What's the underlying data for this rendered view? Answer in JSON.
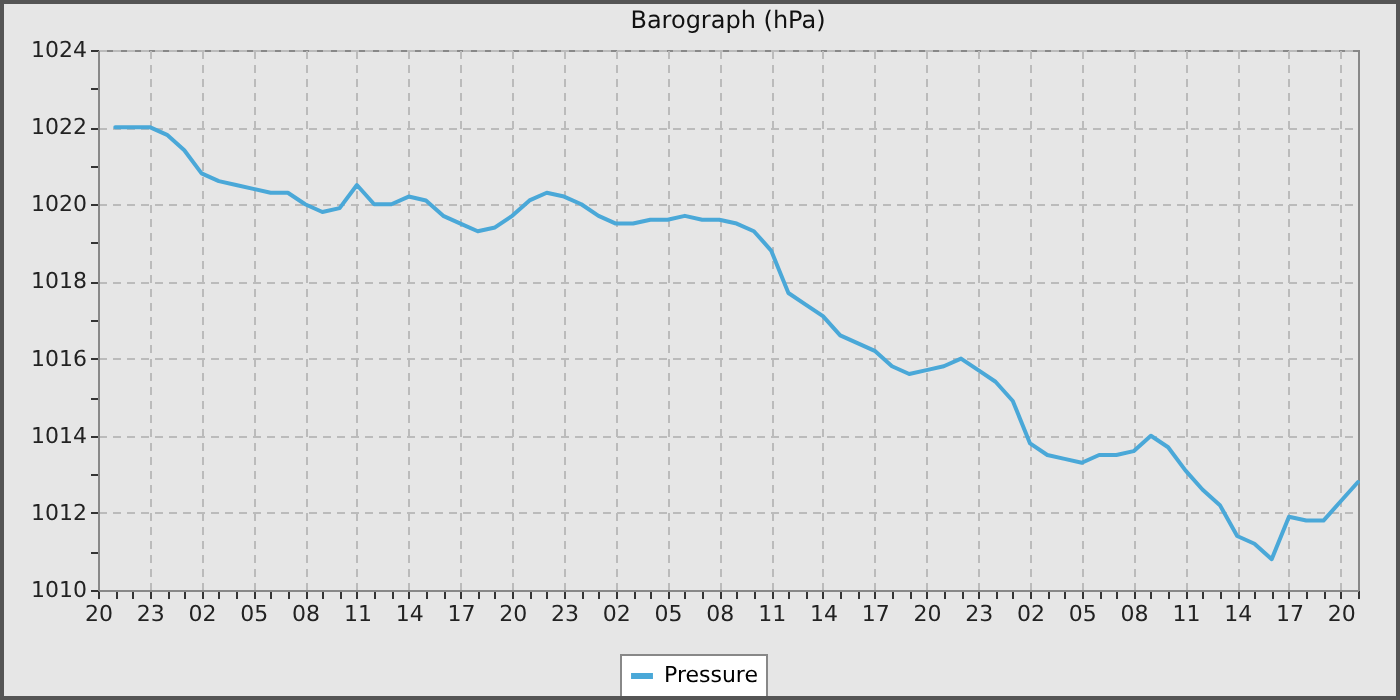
{
  "chart_data": {
    "type": "line",
    "title": "Barograph (hPa)",
    "legend": "bottom",
    "grid": true,
    "marker": "none",
    "line_style": "solid",
    "ylim": [
      1010,
      1024
    ],
    "categories": [
      "20",
      null,
      null,
      "23",
      null,
      null,
      "02",
      null,
      null,
      "05",
      null,
      null,
      "08",
      null,
      null,
      "11",
      null,
      null,
      "14",
      null,
      null,
      "17",
      null,
      null,
      "20",
      null,
      null,
      "23",
      null,
      null,
      "02",
      null,
      null,
      "05",
      null,
      null,
      "08",
      null,
      null,
      "11",
      null,
      null,
      "14",
      null,
      null,
      "17",
      null,
      null,
      "20",
      null,
      null,
      "23",
      null,
      null,
      "02",
      null,
      null,
      "05",
      null,
      null,
      "08",
      null,
      null,
      "11",
      null,
      null,
      "14",
      null,
      null,
      "17",
      null,
      null,
      "20",
      null
    ],
    "yticks": [
      1010,
      {
        "value": 1011,
        "label": null
      },
      1012,
      {
        "value": 1013,
        "label": null
      },
      1014,
      {
        "value": 1015,
        "label": null
      },
      1016,
      {
        "value": 1017,
        "label": null
      },
      1018,
      {
        "value": 1019,
        "label": null
      },
      1020,
      {
        "value": 1021,
        "label": null
      },
      1022,
      {
        "value": 1023,
        "label": null
      },
      1024
    ],
    "series": [
      {
        "name": "Pressure",
        "color": "#4aa8d8",
        "values": [
          null,
          1022.0,
          1022.0,
          1022.0,
          1021.8,
          1021.4,
          1020.8,
          1020.6,
          1020.5,
          1020.4,
          1020.3,
          1020.3,
          1020.0,
          1019.8,
          1019.9,
          1020.5,
          1020.0,
          1020.0,
          1020.2,
          1020.1,
          1019.7,
          1019.5,
          1019.3,
          1019.4,
          1019.7,
          1020.1,
          1020.3,
          1020.2,
          1020.0,
          1019.7,
          1019.5,
          1019.5,
          1019.6,
          1019.6,
          1019.7,
          1019.6,
          1019.6,
          1019.5,
          1019.3,
          1018.8,
          1017.7,
          1017.4,
          1017.1,
          1016.6,
          1016.4,
          1016.2,
          1015.8,
          1015.6,
          1015.7,
          1015.8,
          1016.0,
          1015.7,
          1015.4,
          1014.9,
          1013.8,
          1013.5,
          1013.4,
          1013.3,
          1013.5,
          1013.5,
          1013.6,
          1014.0,
          1013.7,
          1013.1,
          1012.6,
          1012.2,
          1011.4,
          1011.2,
          1010.8,
          1011.9,
          1011.8,
          1011.8,
          1012.3,
          1012.8
        ]
      }
    ]
  }
}
